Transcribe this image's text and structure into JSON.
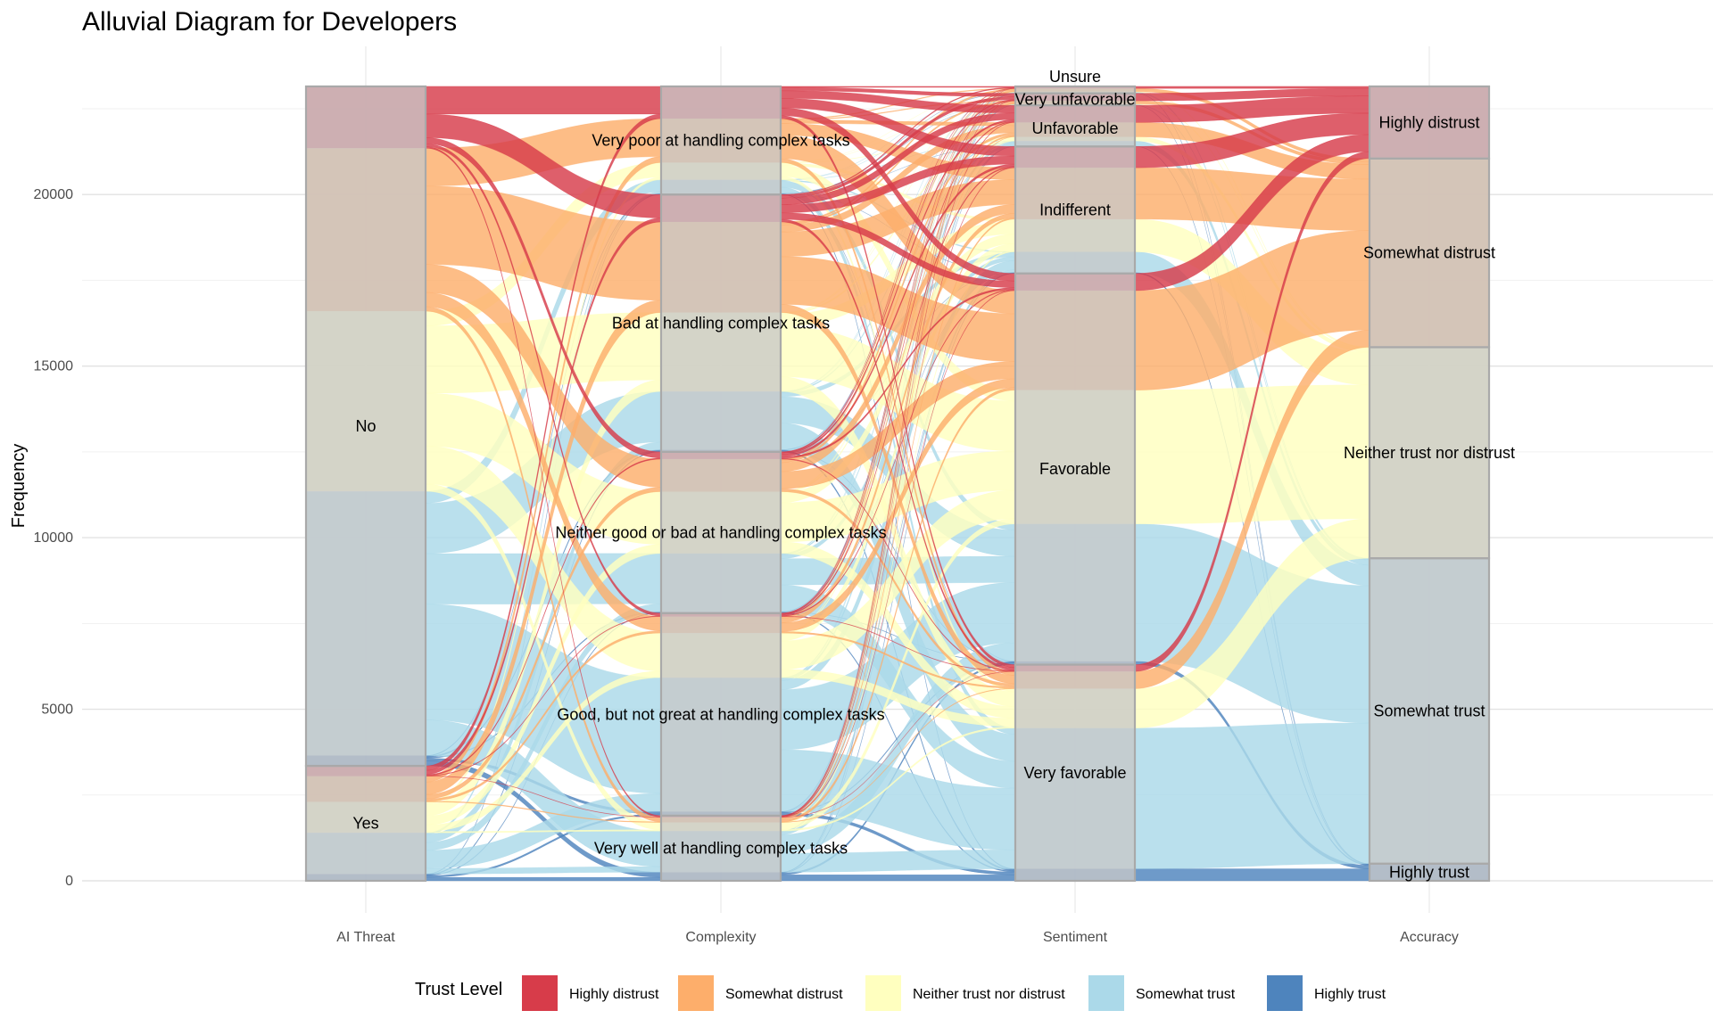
{
  "chart_data": {
    "type": "alluvial",
    "title": "Alluvial Diagram for Developers",
    "ylabel": "Frequency",
    "xlabel": "",
    "ylim": [
      0,
      23200
    ],
    "yticks": [
      0,
      5000,
      10000,
      15000,
      20000
    ],
    "grid": true,
    "legend_position": "bottom",
    "legend": {
      "title": "Trust Level",
      "items": [
        {
          "label": "Highly distrust",
          "color": "#d73c4a"
        },
        {
          "label": "Somewhat distrust",
          "color": "#fdae6b"
        },
        {
          "label": "Neither trust nor distrust",
          "color": "#ffffbf"
        },
        {
          "label": "Somewhat trust",
          "color": "#abd9e9"
        },
        {
          "label": "Highly trust",
          "color": "#4e84bd"
        }
      ]
    },
    "axes": [
      {
        "name": "AI Threat",
        "strata": [
          {
            "label": "Yes",
            "value": 3350
          },
          {
            "label": "No",
            "value": 19800
          }
        ]
      },
      {
        "name": "Complexity",
        "strata": [
          {
            "label": "Very well at handling complex tasks",
            "value": 1900
          },
          {
            "label": "Good, but not great at handling complex tasks",
            "value": 5900
          },
          {
            "label": "Neither good or bad at handling complex tasks",
            "value": 4700
          },
          {
            "label": "Bad at handling complex tasks",
            "value": 7500
          },
          {
            "label": "Very poor at handling complex tasks",
            "value": 3150
          }
        ]
      },
      {
        "name": "Sentiment",
        "strata": [
          {
            "label": "Very favorable",
            "value": 6300
          },
          {
            "label": "Favorable",
            "value": 11400
          },
          {
            "label": "Indifferent",
            "value": 3700
          },
          {
            "label": "Unfavorable",
            "value": 1200
          },
          {
            "label": "Very unfavorable",
            "value": 350
          },
          {
            "label": "Unsure",
            "value": 200
          }
        ]
      },
      {
        "name": "Accuracy",
        "strata": [
          {
            "label": "Highly trust",
            "value": 500
          },
          {
            "label": "Somewhat trust",
            "value": 8900
          },
          {
            "label": "Neither trust nor distrust",
            "value": 6150
          },
          {
            "label": "Somewhat distrust",
            "value": 5500
          },
          {
            "label": "Highly distrust",
            "value": 2100
          }
        ]
      }
    ],
    "flows_by_trust": [
      {
        "trust": "Highly trust",
        "ai_threat": {
          "Yes": 200,
          "No": 300
        }
      },
      {
        "trust": "Somewhat trust",
        "ai_threat": {
          "Yes": 1200,
          "No": 7700
        }
      },
      {
        "trust": "Neither trust nor distrust",
        "ai_threat": {
          "Yes": 900,
          "No": 5250
        }
      },
      {
        "trust": "Somewhat distrust",
        "ai_threat": {
          "Yes": 750,
          "No": 4750
        }
      },
      {
        "trust": "Highly distrust",
        "ai_threat": {
          "Yes": 300,
          "No": 1800
        }
      }
    ],
    "trust_mix": {
      "Complexity": {
        "Very well at handling complex tasks": {
          "Highly trust": 250,
          "Somewhat trust": 1200,
          "Neither trust nor distrust": 250,
          "Somewhat distrust": 150,
          "Highly distrust": 50
        },
        "Good, but not great at handling complex tasks": {
          "Highly trust": 120,
          "Somewhat trust": 3900,
          "Neither trust nor distrust": 1300,
          "Somewhat distrust": 480,
          "Highly distrust": 100
        },
        "Neither good or bad at handling complex tasks": {
          "Highly trust": 40,
          "Somewhat trust": 1700,
          "Neither trust nor distrust": 1800,
          "Somewhat distrust": 950,
          "Highly distrust": 210
        },
        "Bad at handling complex tasks": {
          "Highly trust": 60,
          "Somewhat trust": 1700,
          "Neither trust nor distrust": 2300,
          "Somewhat distrust": 2640,
          "Highly distrust": 800
        },
        "Very poor at handling complex tasks": {
          "Highly trust": 30,
          "Somewhat trust": 400,
          "Neither trust nor distrust": 500,
          "Somewhat distrust": 1280,
          "Highly distrust": 940
        }
      },
      "Sentiment": {
        "Very favorable": {
          "Highly trust": 350,
          "Somewhat trust": 4100,
          "Neither trust nor distrust": 1150,
          "Somewhat distrust": 500,
          "Highly distrust": 200
        },
        "Favorable": {
          "Highly trust": 100,
          "Somewhat trust": 4000,
          "Neither trust nor distrust": 3900,
          "Somewhat distrust": 2900,
          "Highly distrust": 500
        },
        "Indifferent": {
          "Highly trust": 30,
          "Somewhat trust": 600,
          "Neither trust nor distrust": 950,
          "Somewhat distrust": 1500,
          "Highly distrust": 620
        },
        "Unfavorable": {
          "Highly trust": 10,
          "Somewhat trust": 150,
          "Neither trust nor distrust": 120,
          "Somewhat distrust": 420,
          "Highly distrust": 500
        },
        "Very unfavorable": {
          "Highly trust": 5,
          "Somewhat trust": 20,
          "Neither trust nor distrust": 15,
          "Somewhat distrust": 90,
          "Highly distrust": 220
        },
        "Unsure": {
          "Highly trust": 5,
          "Somewhat trust": 30,
          "Neither trust nor distrust": 15,
          "Somewhat distrust": 90,
          "Highly distrust": 60
        }
      }
    }
  }
}
